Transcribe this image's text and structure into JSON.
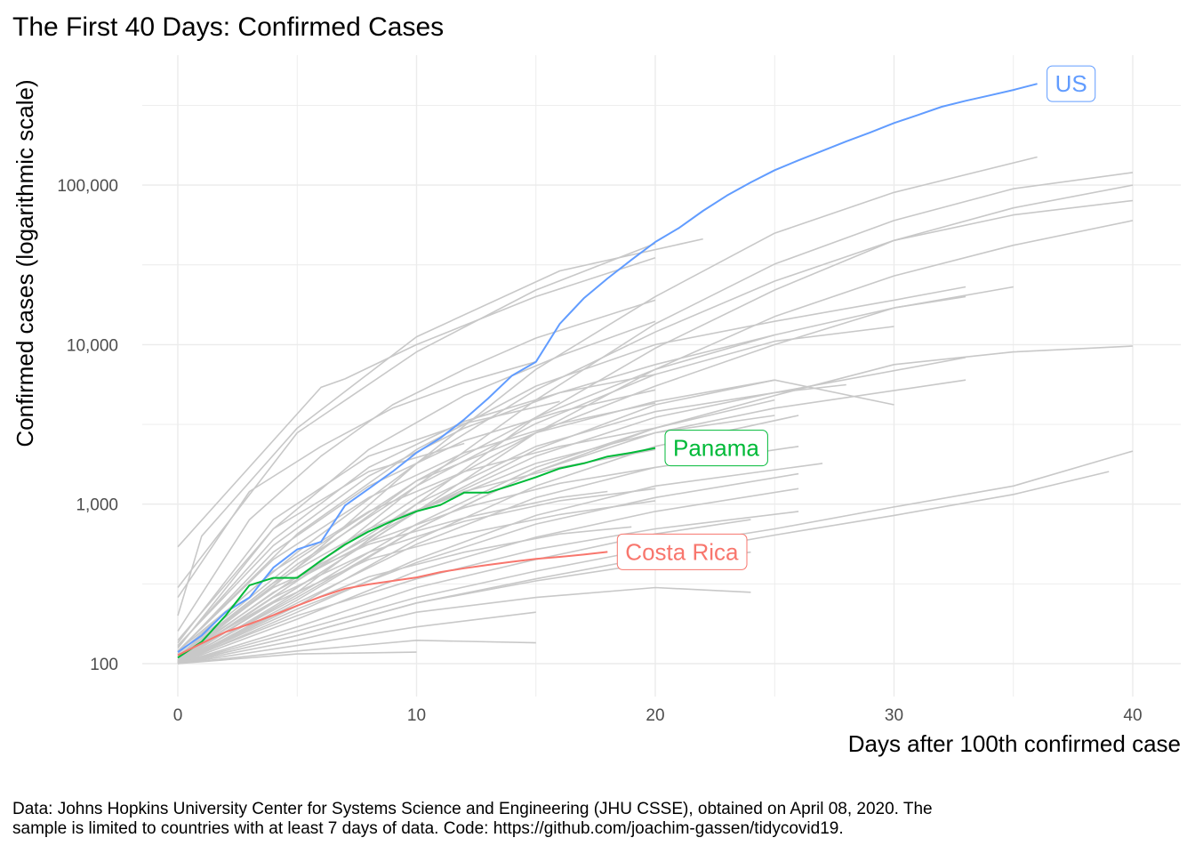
{
  "chart_data": {
    "type": "line",
    "title": "The First 40 Days: Confirmed Cases",
    "xlabel": "Days after 100th confirmed case",
    "ylabel": "Confirmed cases (logarithmic scale)",
    "x_scale": "linear",
    "y_scale": "log10",
    "xlim": [
      0,
      40
    ],
    "ylim": [
      100,
      500000
    ],
    "x_ticks": [
      0,
      10,
      20,
      30,
      40
    ],
    "x_tick_labels": [
      "0",
      "10",
      "20",
      "30",
      "40"
    ],
    "y_ticks": [
      100,
      1000,
      10000,
      100000
    ],
    "y_tick_labels": [
      "100",
      "1,000",
      "10,000",
      "100,000"
    ],
    "grid": true,
    "legend": "none",
    "caption_lines": [
      "Data: Johns Hopkins University Center for Systems Science and Engineering (JHU CSSE), obtained on April 08, 2020. The",
      "sample is limited to countries with at least 7 days of data. Code: https://github.com/joachim-gassen/tidycovid19."
    ],
    "background_color": "#c8c8c8",
    "series": [
      {
        "name": "US",
        "color": "#619cff",
        "x": [
          0,
          1,
          2,
          3,
          4,
          5,
          6,
          7,
          8,
          9,
          10,
          11,
          12,
          13,
          14,
          15,
          16,
          17,
          18,
          19,
          20,
          21,
          22,
          23,
          24,
          25,
          26,
          27,
          28,
          29,
          30,
          31,
          32,
          33,
          34,
          35,
          36
        ],
        "values": [
          118,
          150,
          210,
          260,
          400,
          520,
          580,
          980,
          1250,
          1600,
          2100,
          2600,
          3400,
          4600,
          6400,
          7800,
          13500,
          19500,
          26000,
          34000,
          44000,
          54000,
          69000,
          86000,
          104000,
          124000,
          143000,
          164000,
          188000,
          214000,
          245000,
          275000,
          310000,
          338000,
          365000,
          395000,
          432000
        ]
      },
      {
        "name": "Panama",
        "color": "#00ba38",
        "x": [
          0,
          1,
          2,
          3,
          4,
          5,
          6,
          7,
          8,
          9,
          10,
          11,
          12,
          13,
          14,
          15,
          16,
          17,
          18,
          19,
          20
        ],
        "values": [
          109,
          137,
          200,
          310,
          345,
          345,
          443,
          558,
          674,
          786,
          901,
          989,
          1181,
          1181,
          1317,
          1475,
          1673,
          1801,
          1988,
          2100,
          2249
        ]
      },
      {
        "name": "Costa Rica",
        "color": "#f8766d",
        "x": [
          0,
          1,
          2,
          3,
          4,
          5,
          6,
          7,
          8,
          9,
          10,
          11,
          12,
          13,
          14,
          15,
          16,
          17,
          18
        ],
        "values": [
          113,
          134,
          158,
          177,
          201,
          231,
          263,
          295,
          314,
          330,
          347,
          375,
          396,
          416,
          435,
          454,
          467,
          483,
          502
        ]
      }
    ],
    "background_series": [
      {
        "x": [
          0,
          6,
          7,
          10,
          15,
          20
        ],
        "values": [
          540,
          5400,
          6100,
          10000,
          20000,
          35000
        ]
      },
      {
        "x": [
          0,
          5,
          10,
          15,
          20
        ],
        "values": [
          300,
          2800,
          9000,
          22000,
          43000
        ]
      },
      {
        "x": [
          0,
          1,
          5,
          10,
          16,
          22
        ],
        "values": [
          200,
          630,
          3000,
          11200,
          29000,
          46000
        ]
      },
      {
        "x": [
          0,
          5,
          10,
          15,
          20,
          25,
          30,
          36
        ],
        "values": [
          110,
          400,
          1800,
          7000,
          20000,
          50000,
          90000,
          150000
        ]
      },
      {
        "x": [
          0,
          5,
          10,
          15,
          20,
          25,
          30,
          35,
          40
        ],
        "values": [
          105,
          330,
          1300,
          4500,
          13500,
          32000,
          60000,
          95000,
          120000
        ]
      },
      {
        "x": [
          0,
          5,
          10,
          15,
          20,
          25,
          30,
          35,
          40
        ],
        "values": [
          100,
          280,
          1000,
          3500,
          9500,
          22000,
          45000,
          72000,
          100000
        ]
      },
      {
        "x": [
          0,
          5,
          10,
          15,
          20,
          25,
          30,
          35,
          40
        ],
        "values": [
          120,
          500,
          1800,
          5200,
          12000,
          25000,
          45000,
          65000,
          80000
        ]
      },
      {
        "x": [
          0,
          5,
          10,
          15,
          20,
          25,
          30,
          35,
          40
        ],
        "values": [
          104,
          300,
          900,
          2800,
          7000,
          15000,
          27000,
          42000,
          60000
        ]
      },
      {
        "x": [
          0,
          5,
          10,
          15,
          20,
          25,
          30,
          33
        ],
        "values": [
          120,
          650,
          2200,
          5500,
          10000,
          14000,
          19000,
          23000
        ]
      },
      {
        "x": [
          0,
          5,
          10,
          15,
          20,
          25,
          30,
          33
        ],
        "values": [
          105,
          400,
          1400,
          3500,
          7000,
          11500,
          17000,
          20000
        ]
      },
      {
        "x": [
          0,
          5,
          10,
          15,
          20,
          25,
          30,
          35
        ],
        "values": [
          108,
          350,
          1100,
          2800,
          5500,
          10000,
          17000,
          23000
        ]
      },
      {
        "x": [
          0,
          5,
          10,
          15,
          20,
          25,
          30
        ],
        "values": [
          110,
          420,
          1300,
          3200,
          6500,
          10500,
          13000
        ]
      },
      {
        "x": [
          0,
          5,
          10,
          15,
          20,
          25,
          33
        ],
        "values": [
          102,
          300,
          900,
          2000,
          3500,
          5000,
          8300
        ]
      },
      {
        "x": [
          0,
          5,
          10,
          15,
          20,
          25,
          33
        ],
        "values": [
          103,
          260,
          700,
          1600,
          2800,
          4000,
          6000
        ]
      },
      {
        "x": [
          0,
          5,
          10,
          15,
          20,
          25,
          30,
          35,
          40
        ],
        "values": [
          100,
          250,
          700,
          1600,
          3000,
          4800,
          7500,
          9000,
          9800
        ]
      },
      {
        "x": [
          0,
          5,
          10,
          15,
          20,
          25,
          30
        ],
        "values": [
          110,
          300,
          900,
          2200,
          4200,
          6000,
          4200
        ]
      },
      {
        "x": [
          0,
          5,
          10,
          15,
          20,
          25,
          28
        ],
        "values": [
          105,
          330,
          1000,
          2300,
          3800,
          5000,
          5600
        ]
      },
      {
        "x": [
          0,
          5,
          10,
          15,
          20,
          25
        ],
        "values": [
          112,
          450,
          1400,
          2800,
          4400,
          6000
        ]
      },
      {
        "x": [
          0,
          5,
          10,
          15,
          20,
          25
        ],
        "values": [
          101,
          270,
          750,
          1700,
          3000,
          4500
        ]
      },
      {
        "x": [
          0,
          5,
          10,
          15,
          20,
          26
        ],
        "values": [
          100,
          230,
          600,
          1300,
          2300,
          3600
        ]
      },
      {
        "x": [
          0,
          5,
          10,
          15,
          20,
          25
        ],
        "values": [
          108,
          350,
          900,
          1800,
          2800,
          3600
        ]
      },
      {
        "x": [
          0,
          5,
          10,
          15,
          20,
          26
        ],
        "values": [
          102,
          240,
          560,
          1100,
          1700,
          2300
        ]
      },
      {
        "x": [
          0,
          5,
          10,
          15,
          20,
          27
        ],
        "values": [
          100,
          210,
          450,
          850,
          1300,
          1800
        ]
      },
      {
        "x": [
          0,
          5,
          10,
          15,
          20,
          26
        ],
        "values": [
          101,
          220,
          430,
          750,
          1100,
          1550
        ]
      },
      {
        "x": [
          0,
          5,
          10,
          15,
          20,
          26
        ],
        "values": [
          100,
          190,
          380,
          620,
          900,
          1250
        ]
      },
      {
        "x": [
          0,
          5,
          10,
          15,
          20,
          24
        ],
        "values": [
          100,
          170,
          300,
          450,
          650,
          800
        ]
      },
      {
        "x": [
          0,
          5,
          10,
          15,
          20,
          26
        ],
        "values": [
          102,
          200,
          340,
          520,
          700,
          900
        ]
      },
      {
        "x": [
          0,
          5,
          10,
          15,
          20,
          24
        ],
        "values": [
          100,
          150,
          240,
          330,
          430,
          500
        ]
      },
      {
        "x": [
          0,
          5,
          10,
          15,
          20,
          24
        ],
        "values": [
          100,
          140,
          210,
          260,
          300,
          280
        ]
      },
      {
        "x": [
          0,
          5,
          10,
          15
        ],
        "values": [
          100,
          130,
          170,
          210
        ]
      },
      {
        "x": [
          0,
          5,
          10,
          15
        ],
        "values": [
          100,
          120,
          140,
          135
        ]
      },
      {
        "x": [
          0,
          5,
          10
        ],
        "values": [
          100,
          115,
          118
        ]
      },
      {
        "x": [
          0,
          5,
          10,
          15,
          20,
          25,
          30,
          35,
          40
        ],
        "values": [
          100,
          160,
          260,
          380,
          530,
          700,
          960,
          1300,
          2150
        ]
      },
      {
        "x": [
          0,
          5,
          10,
          15,
          20,
          25,
          30,
          35,
          39
        ],
        "values": [
          100,
          150,
          240,
          340,
          470,
          640,
          850,
          1150,
          1600
        ]
      },
      {
        "x": [
          0,
          3,
          6,
          9,
          12,
          15
        ],
        "values": [
          260,
          1200,
          2300,
          4000,
          5800,
          7800
        ]
      },
      {
        "x": [
          0,
          3,
          6,
          9,
          12,
          15,
          20
        ],
        "values": [
          160,
          800,
          2000,
          4200,
          7000,
          11000,
          19000
        ]
      },
      {
        "x": [
          0,
          4,
          8,
          12,
          16,
          20
        ],
        "values": [
          140,
          700,
          2200,
          4800,
          8500,
          14000
        ]
      },
      {
        "x": [
          0,
          4,
          8,
          12,
          16,
          20,
          25
        ],
        "values": [
          130,
          550,
          1500,
          3000,
          5000,
          7500,
          11500
        ]
      },
      {
        "x": [
          0,
          4,
          8,
          12,
          16,
          20
        ],
        "values": [
          120,
          450,
          1100,
          2100,
          3200,
          4300
        ]
      },
      {
        "x": [
          0,
          4,
          8,
          12,
          16,
          20
        ],
        "values": [
          115,
          380,
          900,
          1600,
          2300,
          3000
        ]
      },
      {
        "x": [
          0,
          4,
          8,
          12,
          16,
          20
        ],
        "values": [
          110,
          320,
          700,
          1200,
          1700,
          2200
        ]
      },
      {
        "x": [
          0,
          4,
          8,
          12,
          16,
          20
        ],
        "values": [
          105,
          280,
          580,
          950,
          1350,
          1700
        ]
      },
      {
        "x": [
          0,
          4,
          8,
          12,
          16,
          20
        ],
        "values": [
          104,
          260,
          500,
          780,
          1050,
          1250
        ]
      },
      {
        "x": [
          0,
          4,
          8,
          12,
          16,
          20
        ],
        "values": [
          103,
          240,
          450,
          650,
          860,
          1050
        ]
      },
      {
        "x": [
          0,
          4,
          8,
          12,
          16,
          18
        ],
        "values": [
          110,
          300,
          560,
          820,
          1100,
          1200
        ]
      },
      {
        "x": [
          0,
          4,
          8,
          12,
          16,
          19
        ],
        "values": [
          101,
          200,
          350,
          500,
          650,
          720
        ]
      },
      {
        "x": [
          0,
          4,
          8,
          12
        ],
        "values": [
          125,
          700,
          1600,
          2400
        ]
      },
      {
        "x": [
          0,
          4,
          8,
          12,
          16
        ],
        "values": [
          135,
          800,
          2000,
          3200,
          4400
        ]
      },
      {
        "x": [
          0,
          4,
          8,
          12,
          16,
          20
        ],
        "values": [
          128,
          600,
          1700,
          3300,
          5000,
          6500
        ]
      },
      {
        "x": [
          0,
          4,
          8,
          12,
          16,
          20
        ],
        "values": [
          118,
          500,
          1300,
          2500,
          3800,
          5200
        ]
      }
    ]
  }
}
